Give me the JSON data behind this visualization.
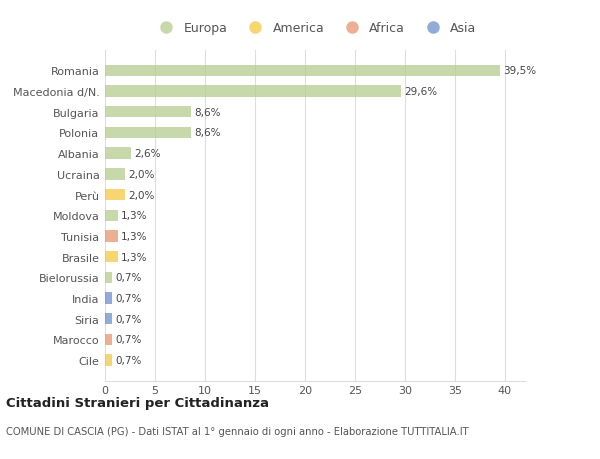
{
  "categories": [
    "Romania",
    "Macedonia d/N.",
    "Bulgaria",
    "Polonia",
    "Albania",
    "Ucraina",
    "Perù",
    "Moldova",
    "Tunisia",
    "Brasile",
    "Bielorussia",
    "India",
    "Siria",
    "Marocco",
    "Cile"
  ],
  "values": [
    39.5,
    29.6,
    8.6,
    8.6,
    2.6,
    2.0,
    2.0,
    1.3,
    1.3,
    1.3,
    0.7,
    0.7,
    0.7,
    0.7,
    0.7
  ],
  "labels": [
    "39,5%",
    "29,6%",
    "8,6%",
    "8,6%",
    "2,6%",
    "2,0%",
    "2,0%",
    "1,3%",
    "1,3%",
    "1,3%",
    "0,7%",
    "0,7%",
    "0,7%",
    "0,7%",
    "0,7%"
  ],
  "continent": [
    "Europa",
    "Europa",
    "Europa",
    "Europa",
    "Europa",
    "Europa",
    "America",
    "Europa",
    "Africa",
    "America",
    "Europa",
    "Asia",
    "Asia",
    "Africa",
    "America"
  ],
  "colors": {
    "Europa": "#b5cc8e",
    "America": "#f5c842",
    "Africa": "#e8956d",
    "Asia": "#6e8fcb"
  },
  "legend_order": [
    "Europa",
    "America",
    "Africa",
    "Asia"
  ],
  "title": "Cittadini Stranieri per Cittadinanza",
  "subtitle": "COMUNE DI CASCIA (PG) - Dati ISTAT al 1° gennaio di ogni anno - Elaborazione TUTTITALIA.IT",
  "xlim": [
    0,
    42
  ],
  "xticks": [
    0,
    5,
    10,
    15,
    20,
    25,
    30,
    35,
    40
  ],
  "background_color": "#ffffff",
  "grid_color": "#dddddd",
  "bar_alpha": 0.75,
  "bar_height": 0.55
}
